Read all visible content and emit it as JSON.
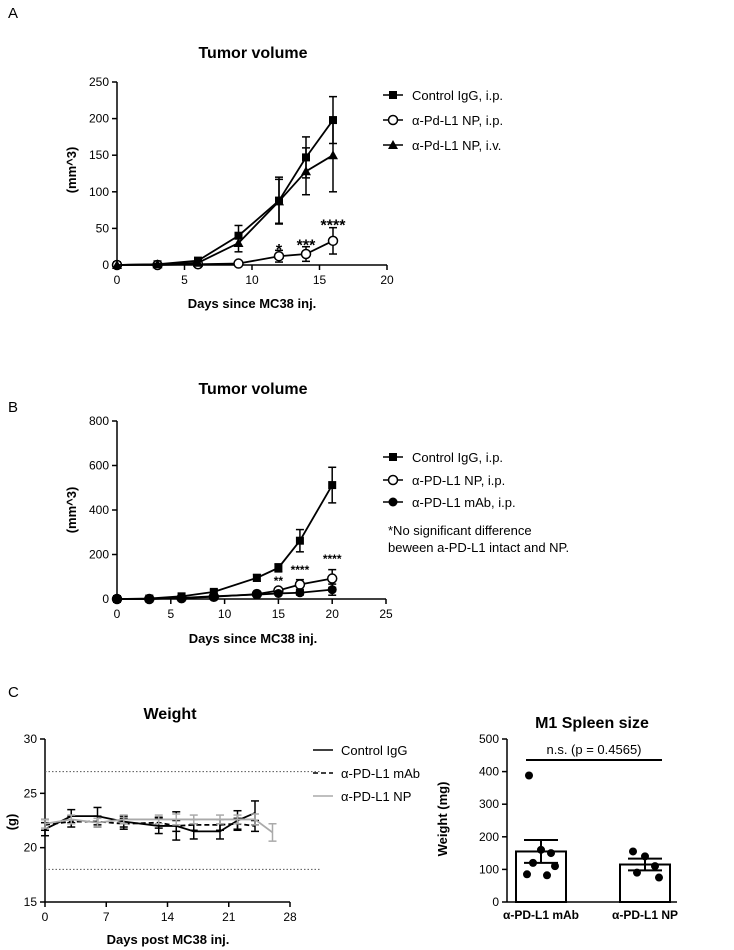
{
  "panels": {
    "a": "A",
    "b": "B",
    "c": "C"
  },
  "note_b": {
    "line1": "*No significant difference",
    "line2": "beween a-PD-L1 intact and NP."
  },
  "chart_data": [
    {
      "id": "A",
      "type": "line",
      "title": "Tumor volume",
      "xlabel": "Days since MC38 inj.",
      "ylabel": "(mm^3)",
      "xlim": [
        0,
        20
      ],
      "ylim": [
        0,
        250
      ],
      "xticks": [
        0,
        5,
        10,
        15,
        20
      ],
      "yticks": [
        0,
        50,
        100,
        150,
        200,
        250
      ],
      "series": [
        {
          "name": "Control IgG, i.p.",
          "marker": "square",
          "x": [
            0,
            3,
            6,
            9,
            12,
            14,
            16
          ],
          "y": [
            0,
            1,
            6,
            40,
            88,
            147,
            198
          ],
          "err": [
            0,
            1,
            3,
            14,
            32,
            28,
            32
          ]
        },
        {
          "name": "α-Pd-L1 NP, i.p.",
          "marker": "circle-open",
          "x": [
            0,
            3,
            6,
            9,
            12,
            14,
            16
          ],
          "y": [
            0,
            0,
            1,
            2,
            12,
            15,
            33
          ],
          "err": [
            0,
            0,
            1,
            2,
            8,
            10,
            18
          ]
        },
        {
          "name": "α-Pd-L1 NP, i.v.",
          "marker": "triangle",
          "x": [
            0,
            3,
            6,
            9,
            12,
            14,
            16
          ],
          "y": [
            0,
            1,
            3,
            30,
            87,
            128,
            150
          ],
          "err": [
            0,
            1,
            2,
            12,
            30,
            32,
            50
          ]
        }
      ],
      "annotations": [
        {
          "text": "*",
          "x": 12,
          "y": 22
        },
        {
          "text": "***",
          "x": 14,
          "y": 28
        },
        {
          "text": "****",
          "x": 16,
          "y": 55
        }
      ]
    },
    {
      "id": "B",
      "type": "line",
      "title": "Tumor volume",
      "xlabel": "Days since MC38 inj.",
      "ylabel": "(mm^3)",
      "xlim": [
        0,
        25
      ],
      "ylim": [
        0,
        800
      ],
      "xticks": [
        0,
        5,
        10,
        15,
        20,
        25
      ],
      "yticks": [
        0,
        200,
        400,
        600,
        800
      ],
      "series": [
        {
          "name": "Control IgG, i.p.",
          "marker": "square",
          "x": [
            0,
            3,
            6,
            9,
            13,
            15,
            17,
            20
          ],
          "y": [
            0,
            2,
            12,
            32,
            95,
            140,
            262,
            512
          ],
          "err": [
            0,
            2,
            5,
            10,
            15,
            18,
            50,
            80
          ]
        },
        {
          "name": "α-PD-L1 NP, i.p.",
          "marker": "circle-open",
          "x": [
            0,
            3,
            6,
            9,
            13,
            15,
            17,
            20
          ],
          "y": [
            0,
            0,
            4,
            10,
            22,
            38,
            65,
            92
          ],
          "err": [
            0,
            0,
            2,
            4,
            8,
            12,
            22,
            40
          ]
        },
        {
          "name": "α-PD-L1 mAb, i.p.",
          "marker": "circle-filled",
          "x": [
            0,
            3,
            6,
            9,
            13,
            15,
            17,
            20
          ],
          "y": [
            0,
            0,
            5,
            12,
            20,
            25,
            28,
            42
          ],
          "err": [
            0,
            0,
            2,
            4,
            6,
            8,
            10,
            25
          ]
        }
      ],
      "annotations": [
        {
          "text": "**",
          "x": 15,
          "y": 85
        },
        {
          "text": "****",
          "x": 17,
          "y": 135
        },
        {
          "text": "****",
          "x": 20,
          "y": 185
        }
      ]
    },
    {
      "id": "C-weight",
      "type": "line",
      "title": "Weight",
      "xlabel": "Days post MC38 inj.",
      "ylabel": "(g)",
      "xlim": [
        0,
        28
      ],
      "ylim": [
        15,
        30
      ],
      "xticks": [
        0,
        7,
        14,
        21,
        28
      ],
      "yticks": [
        15,
        20,
        25,
        30
      ],
      "reference_lines": [
        27,
        18
      ],
      "series": [
        {
          "name": "Control IgG",
          "style": "solid",
          "color": "#000000",
          "x": [
            0,
            3,
            6,
            9,
            13,
            15,
            17,
            20,
            22,
            24
          ],
          "y": [
            21.7,
            22.9,
            22.9,
            22.4,
            22.0,
            22.0,
            21.5,
            21.5,
            22.5,
            23.2
          ],
          "err": [
            0.6,
            0.6,
            0.8,
            0.5,
            0.7,
            1.3,
            0.7,
            0.7,
            0.9,
            1.1
          ]
        },
        {
          "name": "α-PD-L1 mAb",
          "style": "dashed",
          "color": "#000000",
          "x": [
            0,
            3,
            6,
            9,
            13,
            15,
            17,
            20,
            22,
            24
          ],
          "y": [
            22.1,
            22.4,
            22.4,
            22.2,
            22.3,
            22.0,
            22.1,
            22.1,
            22.2,
            22.0
          ],
          "err": [
            0.5,
            0.5,
            0.5,
            0.5,
            0.5,
            0.5,
            0.5,
            0.5,
            0.5,
            0.5
          ]
        },
        {
          "name": "α-PD-L1 NP",
          "style": "solid",
          "color": "#aaaaaa",
          "x": [
            0,
            3,
            6,
            9,
            13,
            15,
            17,
            20,
            22,
            24,
            26
          ],
          "y": [
            22.2,
            22.6,
            22.3,
            22.6,
            22.6,
            22.6,
            22.6,
            22.6,
            22.6,
            22.6,
            21.4
          ],
          "err": [
            0.4,
            0.4,
            0.4,
            0.4,
            0.4,
            0.5,
            0.4,
            0.4,
            0.4,
            0.5,
            0.8
          ]
        }
      ]
    },
    {
      "id": "C-spleen",
      "type": "bar",
      "title": "M1 Spleen size",
      "ylabel": "Weight (mg)",
      "ylim": [
        0,
        500
      ],
      "yticks": [
        0,
        100,
        200,
        300,
        400,
        500
      ],
      "categories": [
        "α-PD-L1 mAb",
        "α-PD-L1 NP"
      ],
      "values": [
        155,
        115
      ],
      "err": [
        35,
        18
      ],
      "points": [
        [
          388,
          160,
          150,
          120,
          110,
          85,
          82
        ],
        [
          155,
          140,
          110,
          90,
          75
        ]
      ],
      "significance": "n.s. (p = 0.4565)"
    }
  ]
}
